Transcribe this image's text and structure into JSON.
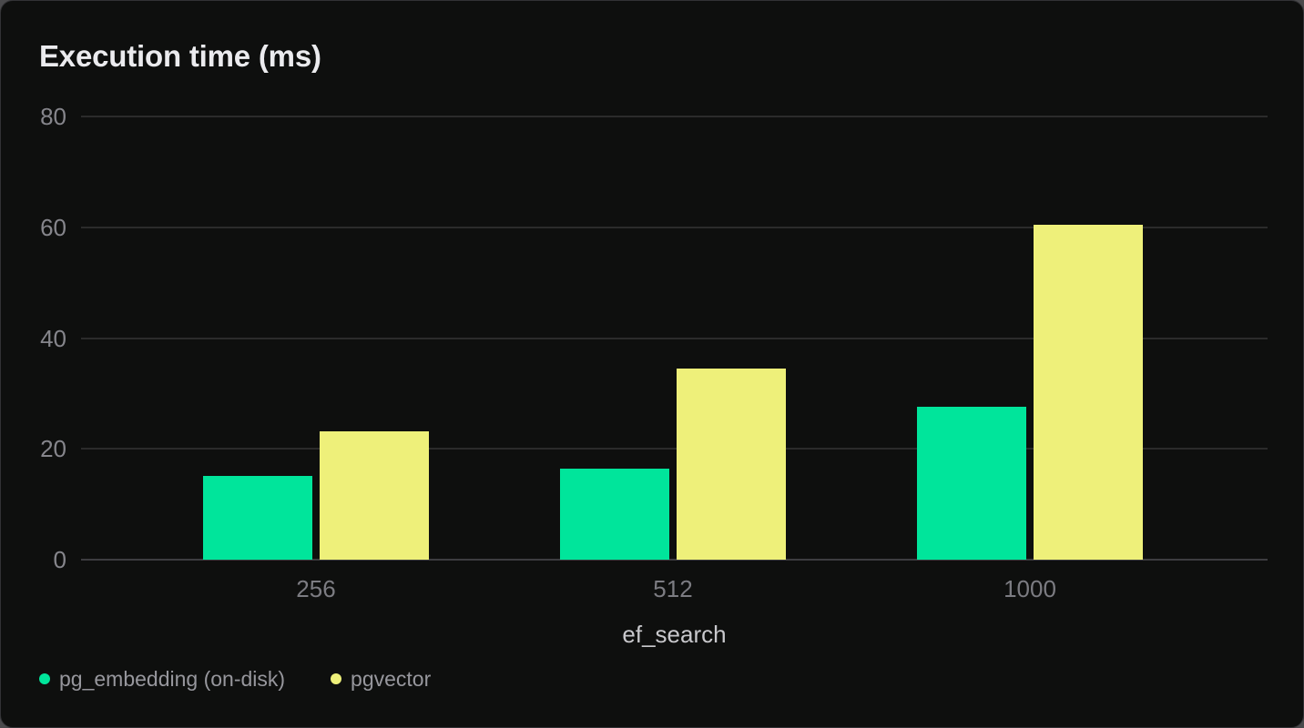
{
  "page": {
    "background": "#4A4A4C"
  },
  "card": {
    "background": "#0E0F0E",
    "border_color": "#323235"
  },
  "chart_data": {
    "type": "bar",
    "title": "Execution time (ms)",
    "categories": [
      "256",
      "512",
      "1000"
    ],
    "series": [
      {
        "name": "pg_embedding (on-disk)",
        "color": "#00E59B",
        "values": [
          15.1,
          16.4,
          27.6
        ]
      },
      {
        "name": "pgvector",
        "color": "#EEF07A",
        "values": [
          23.2,
          34.5,
          60.4
        ]
      }
    ],
    "xlabel": "ef_search",
    "ylabel": "",
    "ylim": [
      0,
      80
    ],
    "yticks": [
      0,
      20,
      40,
      60,
      80
    ],
    "grid": true,
    "legend_position": "bottom-left",
    "colors": {
      "grid_line": "#2B2B2B",
      "axis_line": "#3D3D40",
      "title_text": "#EBEBEE",
      "y_tick_text": "#86868C",
      "x_tick_text": "#7C7C82",
      "x_label_text": "#C8C8CC",
      "legend_text": "#97979D"
    }
  }
}
